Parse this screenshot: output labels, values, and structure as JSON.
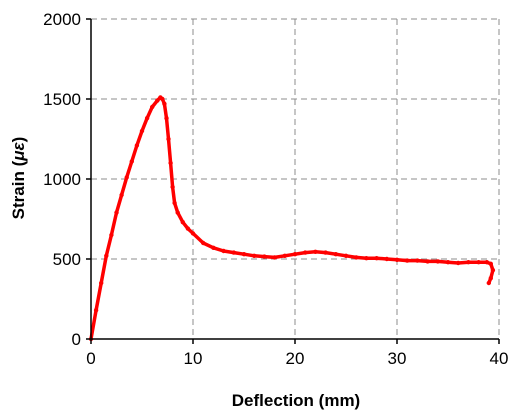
{
  "chart_data": {
    "type": "scatter",
    "xlabel": "Deflection (mm)",
    "ylabel_prefix": "Strain (",
    "ylabel_symbol": "με",
    "ylabel_suffix": ")",
    "xlim": [
      0,
      40
    ],
    "ylim": [
      0,
      2000
    ],
    "x_ticks": [
      "0",
      "10",
      "20",
      "30",
      "40"
    ],
    "y_ticks": [
      "0",
      "500",
      "1000",
      "1500",
      "2000"
    ],
    "grid": true,
    "legend": "none",
    "series": [
      {
        "color": "#ff0000",
        "x": [
          0,
          0.5,
          1,
          1.5,
          2,
          2.5,
          3,
          3.5,
          4,
          4.5,
          5,
          5.5,
          6,
          6.5,
          6.8,
          7.0,
          7.2,
          7.4,
          7.6,
          7.8,
          8.0,
          8.2,
          8.5,
          9,
          9.5,
          10,
          11,
          12,
          13,
          14,
          15,
          16,
          17,
          18,
          19,
          20,
          21,
          22,
          23,
          24,
          25,
          26,
          27,
          28,
          29,
          30,
          31,
          32,
          33,
          34,
          35,
          36,
          37,
          38,
          38.8,
          39.2,
          39.4,
          39.2,
          39.0
        ],
        "y": [
          0,
          180,
          350,
          520,
          650,
          790,
          900,
          1010,
          1110,
          1210,
          1300,
          1380,
          1450,
          1490,
          1510,
          1500,
          1470,
          1380,
          1250,
          1100,
          950,
          850,
          790,
          730,
          690,
          660,
          600,
          570,
          550,
          540,
          530,
          520,
          515,
          510,
          520,
          530,
          540,
          545,
          540,
          530,
          520,
          510,
          505,
          505,
          500,
          495,
          490,
          490,
          485,
          485,
          480,
          475,
          480,
          480,
          480,
          470,
          430,
          380,
          350
        ]
      }
    ]
  }
}
